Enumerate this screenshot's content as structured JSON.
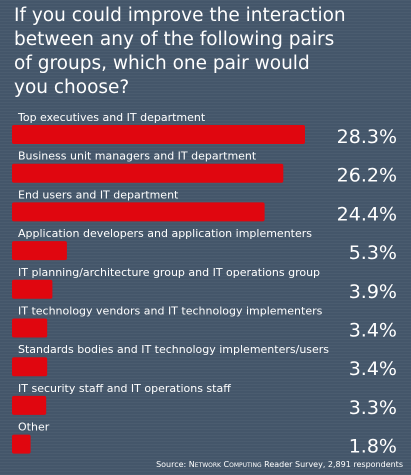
{
  "title_lines": [
    "If you could improve the interaction",
    "between any of the following pairs",
    "of groups, which one pair would",
    "you choose?"
  ],
  "source": {
    "prefix": "Source: ",
    "publication": "Network Computing",
    "suffix": " Reader Survey, 2,891 respondents"
  },
  "chart_data": {
    "type": "bar",
    "orientation": "horizontal",
    "title": "If you could improve the interaction between any of the following pairs of groups, which one pair would you choose?",
    "categories": [
      "Top executives and IT department",
      "Business unit managers and IT department",
      "End users and IT department",
      "Application developers and application implementers",
      "IT planning/architecture group and IT operations group",
      "IT technology vendors and IT technology implementers",
      "Standards bodies and IT technology implementers/users",
      "IT security staff and IT operations staff",
      "Other"
    ],
    "values": [
      28.3,
      26.2,
      24.4,
      5.3,
      3.9,
      3.4,
      3.4,
      3.3,
      1.8
    ],
    "value_labels": [
      "28.3%",
      "26.2%",
      "24.4%",
      "5.3%",
      "3.9%",
      "3.4%",
      "3.4%",
      "3.3%",
      "1.8%"
    ],
    "xlim": [
      0,
      28.3
    ],
    "grid": false,
    "legend": "none",
    "colors": {
      "background": "#44566a",
      "bar": "#e0060f",
      "text": "#ffffff"
    }
  }
}
